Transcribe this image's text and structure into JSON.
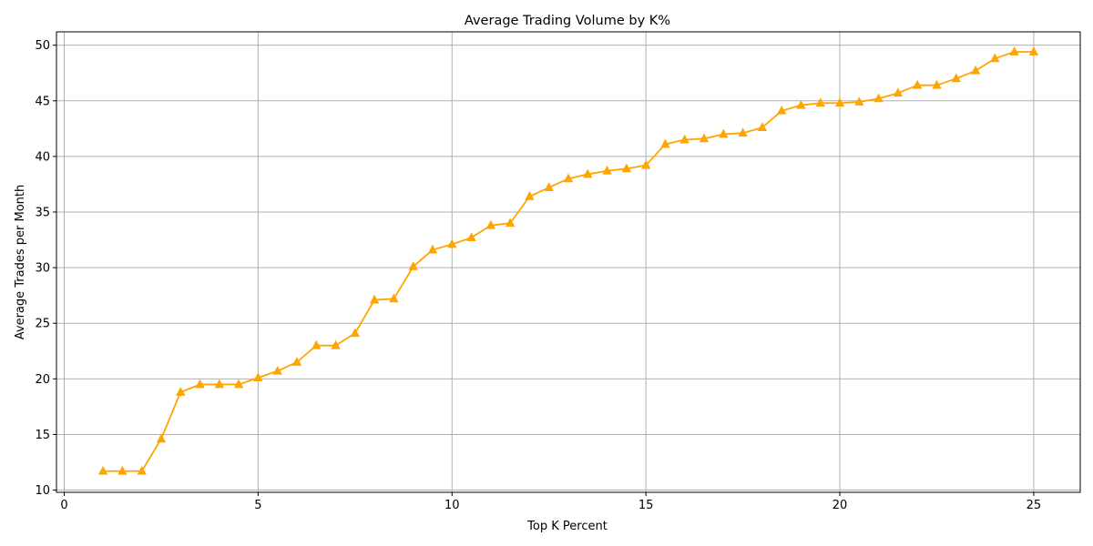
{
  "chart_data": {
    "type": "line",
    "title": "Average Trading Volume by K%",
    "xlabel": "Top K Percent",
    "ylabel": "Average Trades per Month",
    "xlim": [
      -0.2,
      26.2
    ],
    "ylim": [
      9.8,
      51.2
    ],
    "xticks": [
      0,
      5,
      10,
      15,
      20,
      25
    ],
    "yticks": [
      10,
      15,
      20,
      25,
      30,
      35,
      40,
      45,
      50
    ],
    "grid": true,
    "color": "#ffa500",
    "marker": "triangle-up",
    "x": [
      1,
      1.5,
      2,
      2.5,
      3,
      3.5,
      4,
      4.5,
      5,
      5.5,
      6,
      6.5,
      7,
      7.5,
      8,
      8.5,
      9,
      9.5,
      10,
      10.5,
      11,
      11.5,
      12,
      12.5,
      13,
      13.5,
      14,
      14.5,
      15,
      15.5,
      16,
      16.5,
      17,
      17.5,
      18,
      18.5,
      19,
      19.5,
      20,
      20.5,
      21,
      21.5,
      22,
      22.5,
      23,
      23.5,
      24,
      24.5,
      25
    ],
    "y": [
      11.7,
      11.7,
      11.7,
      14.6,
      18.8,
      19.5,
      19.5,
      19.5,
      20.1,
      20.7,
      21.5,
      23.0,
      23.0,
      24.1,
      27.1,
      27.2,
      30.1,
      31.6,
      32.1,
      32.7,
      33.8,
      34.0,
      36.4,
      37.2,
      38.0,
      38.4,
      38.7,
      38.9,
      39.2,
      41.1,
      41.5,
      41.6,
      42.0,
      42.1,
      42.6,
      44.1,
      44.6,
      44.8,
      44.8,
      44.9,
      45.2,
      45.7,
      46.4,
      46.4,
      47.0,
      47.7,
      48.8,
      49.4,
      49.4
    ]
  }
}
